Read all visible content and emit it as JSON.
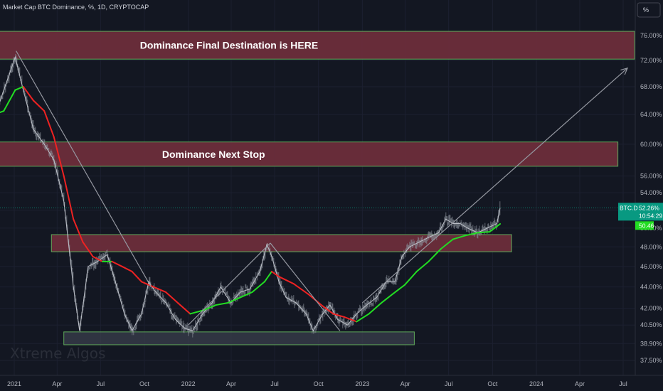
{
  "header": {
    "title": "Market Cap BTC Dominance, %, 1D, CRYPTOCAP"
  },
  "scale_button": {
    "label": "%"
  },
  "watermark": "Xtreme Algos",
  "price_tag": {
    "symbol": "BTC.D",
    "value": "52.26%",
    "countdown": "10:54:29",
    "ma_value": "50.46"
  },
  "colors": {
    "background": "#131722",
    "zone_fill": "#6b2d3b",
    "zone_border": "#5fa85a",
    "support_fill": "#3a3f4c",
    "ma_up": "#22dd22",
    "ma_down": "#ee2222",
    "candles": "#8a8f99",
    "trendline": "#9598a1",
    "tag_bg": "#089981",
    "ma_tag_bg": "#22dd22"
  },
  "chart_data": {
    "type": "line",
    "x_scale": "time",
    "y_scale": "log",
    "x_ticks": [
      "2021",
      "Apr",
      "Jul",
      "Oct",
      "2022",
      "Apr",
      "Jul",
      "Oct",
      "2023",
      "Apr",
      "Jul",
      "Oct",
      "2024",
      "Apr",
      "Jul"
    ],
    "x_tick_dates": [
      "2021-01-01",
      "2021-04-01",
      "2021-07-01",
      "2021-10-01",
      "2022-01-01",
      "2022-04-01",
      "2022-07-01",
      "2022-10-01",
      "2023-01-01",
      "2023-04-01",
      "2023-07-01",
      "2023-10-01",
      "2024-01-01",
      "2024-04-01",
      "2024-07-01"
    ],
    "y_ticks": [
      "76.00%",
      "72.00%",
      "68.00%",
      "64.00%",
      "60.00%",
      "56.00%",
      "54.00%",
      "52.00%",
      "50.00%",
      "48.00%",
      "46.00%",
      "44.00%",
      "42.00%",
      "40.50%",
      "38.90%",
      "37.50%"
    ],
    "y_tick_values": [
      76,
      72,
      68,
      64,
      60,
      56,
      54,
      52,
      50,
      48,
      46,
      44,
      42,
      40.5,
      38.9,
      37.5
    ],
    "series": [
      {
        "name": "BTC.D",
        "x": [
          "2020-11-20",
          "2020-12-10",
          "2021-01-03",
          "2021-01-20",
          "2021-02-10",
          "2021-03-05",
          "2021-03-25",
          "2021-04-15",
          "2021-05-05",
          "2021-05-18",
          "2021-06-05",
          "2021-06-25",
          "2021-07-15",
          "2021-08-01",
          "2021-08-20",
          "2021-09-05",
          "2021-09-25",
          "2021-10-10",
          "2021-10-25",
          "2021-11-15",
          "2021-12-05",
          "2021-12-25",
          "2022-01-10",
          "2022-01-31",
          "2022-02-20",
          "2022-03-10",
          "2022-03-31",
          "2022-04-20",
          "2022-05-10",
          "2022-05-31",
          "2022-06-15",
          "2022-06-25",
          "2022-07-10",
          "2022-07-25",
          "2022-08-15",
          "2022-09-05",
          "2022-09-20",
          "2022-10-10",
          "2022-10-25",
          "2022-11-10",
          "2022-12-01",
          "2022-12-20",
          "2023-01-10",
          "2023-01-31",
          "2023-02-20",
          "2023-03-10",
          "2023-03-25",
          "2023-04-10",
          "2023-04-30",
          "2023-05-20",
          "2023-06-10",
          "2023-06-25",
          "2023-07-10",
          "2023-07-25",
          "2023-08-10",
          "2023-08-31",
          "2023-09-20",
          "2023-10-10",
          "2023-10-17"
        ],
        "y": [
          63.5,
          67.5,
          72.5,
          67.5,
          62,
          60,
          58,
          53,
          44,
          40,
          46,
          46.5,
          47.2,
          44.5,
          41.5,
          40,
          41.5,
          44.5,
          43.5,
          42.5,
          41,
          40.2,
          40,
          41.5,
          42.5,
          44,
          42.5,
          43.5,
          43.8,
          45.5,
          48.3,
          47,
          44.5,
          43,
          42.5,
          41.5,
          40,
          41.5,
          42.3,
          41,
          40.5,
          41.5,
          42.3,
          43,
          44.5,
          44.5,
          47,
          48,
          48.5,
          49,
          49.5,
          51,
          50.5,
          50.5,
          50,
          49.5,
          50,
          50.5,
          52.26
        ]
      },
      {
        "name": "MA",
        "x": [
          "2020-11-20",
          "2020-12-10",
          "2021-01-03",
          "2021-01-20",
          "2021-02-10",
          "2021-03-05",
          "2021-03-25",
          "2021-04-15",
          "2021-05-05",
          "2021-05-25",
          "2021-06-15",
          "2021-07-05",
          "2021-07-25",
          "2021-08-15",
          "2021-09-05",
          "2021-09-25",
          "2021-10-20",
          "2021-11-15",
          "2021-12-10",
          "2022-01-05",
          "2022-01-31",
          "2022-02-28",
          "2022-03-25",
          "2022-04-20",
          "2022-05-15",
          "2022-06-10",
          "2022-06-25",
          "2022-07-10",
          "2022-08-10",
          "2022-09-10",
          "2022-10-10",
          "2022-11-01",
          "2022-11-25",
          "2022-12-20",
          "2023-01-15",
          "2023-02-10",
          "2023-03-05",
          "2023-03-31",
          "2023-04-25",
          "2023-05-20",
          "2023-06-15",
          "2023-07-10",
          "2023-08-05",
          "2023-08-31",
          "2023-09-25",
          "2023-10-17"
        ],
        "y": [
          64,
          64.5,
          67.5,
          68,
          66,
          64.5,
          61,
          56,
          51,
          48.5,
          47,
          46.5,
          46.5,
          46,
          45.5,
          44.5,
          44,
          43.5,
          42.5,
          41.5,
          41.8,
          42.3,
          42.5,
          43,
          43.5,
          44.5,
          45.5,
          45,
          44.3,
          43.3,
          42.2,
          41.5,
          41.2,
          40.8,
          41.5,
          42.5,
          43.3,
          44.2,
          45.5,
          46.5,
          47.8,
          48.8,
          49.2,
          49.5,
          49.6,
          50.46
        ]
      }
    ],
    "annotations": {
      "zones": [
        {
          "label": "Dominance Final Destination is HERE",
          "start": "2020-11-20",
          "end": "2024-07-25",
          "low": 72.2,
          "high": 76.7
        },
        {
          "label": "Dominance Next Stop",
          "start": "2020-11-20",
          "end": "2024-06-20",
          "low": 57.2,
          "high": 60.3
        },
        {
          "label": "",
          "start": "2021-03-20",
          "end": "2023-11-10",
          "low": 47.5,
          "high": 49.3
        },
        {
          "label": "",
          "start": "2021-04-15",
          "end": "2023-04-20",
          "low": 38.8,
          "high": 39.9
        }
      ],
      "trendlines": [
        {
          "from": [
            "2021-01-05",
            73.5
          ],
          "to": [
            "2021-10-15",
            44
          ]
        },
        {
          "from": [
            "2022-01-01",
            40.5
          ],
          "to": [
            "2022-06-22",
            48.4
          ]
        },
        {
          "from": [
            "2022-06-22",
            48.4
          ],
          "to": [
            "2022-11-15",
            40
          ]
        },
        {
          "from": [
            "2023-01-01",
            42.5
          ],
          "to": [
            "2024-07-10",
            70.8
          ],
          "arrow": true
        }
      ]
    }
  }
}
